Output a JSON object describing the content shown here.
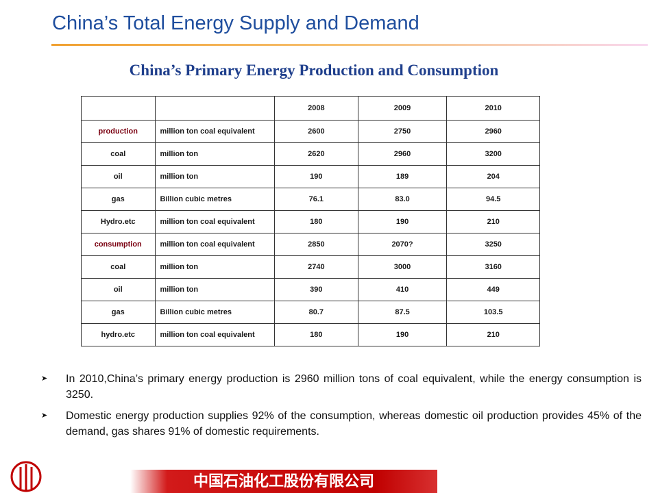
{
  "header": {
    "title": "China’s Total Energy Supply and Demand"
  },
  "table": {
    "title": "China’s Primary Energy Production and Consumption",
    "columns": [
      "2008",
      "2009",
      "2010"
    ],
    "rows": [
      [
        "production",
        "million ton coal equivalent",
        "2600",
        "2750",
        "2960"
      ],
      [
        "coal",
        "million ton",
        "2620",
        "2960",
        "3200"
      ],
      [
        "oil",
        "million ton",
        "190",
        "189",
        "204"
      ],
      [
        "gas",
        "Billion cubic metres",
        "76.1",
        "83.0",
        "94.5"
      ],
      [
        "Hydro.etc",
        "million ton coal equivalent",
        "180",
        "190",
        "210"
      ],
      [
        "consumption",
        "million ton coal equivalent",
        "2850",
        "2070?",
        "3250"
      ],
      [
        "coal",
        "million ton",
        "2740",
        "3000",
        "3160"
      ],
      [
        "oil",
        "million ton",
        "390",
        "410",
        "449"
      ],
      [
        "gas",
        "Billion cubic metres",
        "80.7",
        "87.5",
        "103.5"
      ],
      [
        "hydro.etc",
        "million ton coal equivalent",
        "180",
        "190",
        "210"
      ]
    ]
  },
  "bullets": [
    "In 2010,China’s primary energy production is 2960 million tons of coal equivalent, while the  energy consumption is 3250.",
    "Domestic energy production supplies 92% of the consumption, whereas domestic oil production provides 45% of the demand, gas shares 91% of domestic requirements."
  ],
  "footer": {
    "company": "中国石油化工股份有限公司"
  }
}
